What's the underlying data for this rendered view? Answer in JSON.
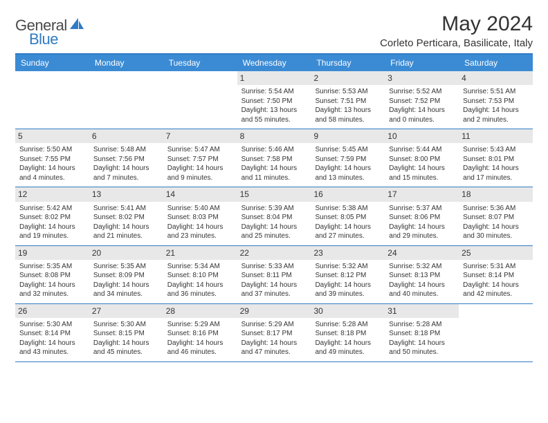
{
  "brand": {
    "part1": "General",
    "part2": "Blue"
  },
  "title": "May 2024",
  "location": "Corleto Perticara, Basilicate, Italy",
  "colors": {
    "header_bg": "#3b8bd4",
    "border": "#2f7bc4",
    "daynum_bg": "#e8e8e8",
    "text": "#333333",
    "white": "#ffffff"
  },
  "calendar": {
    "weekdays": [
      "Sunday",
      "Monday",
      "Tuesday",
      "Wednesday",
      "Thursday",
      "Friday",
      "Saturday"
    ],
    "layout": {
      "fontsize_day_number": 12,
      "fontsize_body": 10,
      "fontsize_weekday": 12,
      "cell_min_height": 82
    },
    "weeks": [
      [
        {
          "empty": true
        },
        {
          "empty": true
        },
        {
          "empty": true
        },
        {
          "day": "1",
          "sunrise": "Sunrise: 5:54 AM",
          "sunset": "Sunset: 7:50 PM",
          "daylight1": "Daylight: 13 hours",
          "daylight2": "and 55 minutes."
        },
        {
          "day": "2",
          "sunrise": "Sunrise: 5:53 AM",
          "sunset": "Sunset: 7:51 PM",
          "daylight1": "Daylight: 13 hours",
          "daylight2": "and 58 minutes."
        },
        {
          "day": "3",
          "sunrise": "Sunrise: 5:52 AM",
          "sunset": "Sunset: 7:52 PM",
          "daylight1": "Daylight: 14 hours",
          "daylight2": "and 0 minutes."
        },
        {
          "day": "4",
          "sunrise": "Sunrise: 5:51 AM",
          "sunset": "Sunset: 7:53 PM",
          "daylight1": "Daylight: 14 hours",
          "daylight2": "and 2 minutes."
        }
      ],
      [
        {
          "day": "5",
          "sunrise": "Sunrise: 5:50 AM",
          "sunset": "Sunset: 7:55 PM",
          "daylight1": "Daylight: 14 hours",
          "daylight2": "and 4 minutes."
        },
        {
          "day": "6",
          "sunrise": "Sunrise: 5:48 AM",
          "sunset": "Sunset: 7:56 PM",
          "daylight1": "Daylight: 14 hours",
          "daylight2": "and 7 minutes."
        },
        {
          "day": "7",
          "sunrise": "Sunrise: 5:47 AM",
          "sunset": "Sunset: 7:57 PM",
          "daylight1": "Daylight: 14 hours",
          "daylight2": "and 9 minutes."
        },
        {
          "day": "8",
          "sunrise": "Sunrise: 5:46 AM",
          "sunset": "Sunset: 7:58 PM",
          "daylight1": "Daylight: 14 hours",
          "daylight2": "and 11 minutes."
        },
        {
          "day": "9",
          "sunrise": "Sunrise: 5:45 AM",
          "sunset": "Sunset: 7:59 PM",
          "daylight1": "Daylight: 14 hours",
          "daylight2": "and 13 minutes."
        },
        {
          "day": "10",
          "sunrise": "Sunrise: 5:44 AM",
          "sunset": "Sunset: 8:00 PM",
          "daylight1": "Daylight: 14 hours",
          "daylight2": "and 15 minutes."
        },
        {
          "day": "11",
          "sunrise": "Sunrise: 5:43 AM",
          "sunset": "Sunset: 8:01 PM",
          "daylight1": "Daylight: 14 hours",
          "daylight2": "and 17 minutes."
        }
      ],
      [
        {
          "day": "12",
          "sunrise": "Sunrise: 5:42 AM",
          "sunset": "Sunset: 8:02 PM",
          "daylight1": "Daylight: 14 hours",
          "daylight2": "and 19 minutes."
        },
        {
          "day": "13",
          "sunrise": "Sunrise: 5:41 AM",
          "sunset": "Sunset: 8:02 PM",
          "daylight1": "Daylight: 14 hours",
          "daylight2": "and 21 minutes."
        },
        {
          "day": "14",
          "sunrise": "Sunrise: 5:40 AM",
          "sunset": "Sunset: 8:03 PM",
          "daylight1": "Daylight: 14 hours",
          "daylight2": "and 23 minutes."
        },
        {
          "day": "15",
          "sunrise": "Sunrise: 5:39 AM",
          "sunset": "Sunset: 8:04 PM",
          "daylight1": "Daylight: 14 hours",
          "daylight2": "and 25 minutes."
        },
        {
          "day": "16",
          "sunrise": "Sunrise: 5:38 AM",
          "sunset": "Sunset: 8:05 PM",
          "daylight1": "Daylight: 14 hours",
          "daylight2": "and 27 minutes."
        },
        {
          "day": "17",
          "sunrise": "Sunrise: 5:37 AM",
          "sunset": "Sunset: 8:06 PM",
          "daylight1": "Daylight: 14 hours",
          "daylight2": "and 29 minutes."
        },
        {
          "day": "18",
          "sunrise": "Sunrise: 5:36 AM",
          "sunset": "Sunset: 8:07 PM",
          "daylight1": "Daylight: 14 hours",
          "daylight2": "and 30 minutes."
        }
      ],
      [
        {
          "day": "19",
          "sunrise": "Sunrise: 5:35 AM",
          "sunset": "Sunset: 8:08 PM",
          "daylight1": "Daylight: 14 hours",
          "daylight2": "and 32 minutes."
        },
        {
          "day": "20",
          "sunrise": "Sunrise: 5:35 AM",
          "sunset": "Sunset: 8:09 PM",
          "daylight1": "Daylight: 14 hours",
          "daylight2": "and 34 minutes."
        },
        {
          "day": "21",
          "sunrise": "Sunrise: 5:34 AM",
          "sunset": "Sunset: 8:10 PM",
          "daylight1": "Daylight: 14 hours",
          "daylight2": "and 36 minutes."
        },
        {
          "day": "22",
          "sunrise": "Sunrise: 5:33 AM",
          "sunset": "Sunset: 8:11 PM",
          "daylight1": "Daylight: 14 hours",
          "daylight2": "and 37 minutes."
        },
        {
          "day": "23",
          "sunrise": "Sunrise: 5:32 AM",
          "sunset": "Sunset: 8:12 PM",
          "daylight1": "Daylight: 14 hours",
          "daylight2": "and 39 minutes."
        },
        {
          "day": "24",
          "sunrise": "Sunrise: 5:32 AM",
          "sunset": "Sunset: 8:13 PM",
          "daylight1": "Daylight: 14 hours",
          "daylight2": "and 40 minutes."
        },
        {
          "day": "25",
          "sunrise": "Sunrise: 5:31 AM",
          "sunset": "Sunset: 8:14 PM",
          "daylight1": "Daylight: 14 hours",
          "daylight2": "and 42 minutes."
        }
      ],
      [
        {
          "day": "26",
          "sunrise": "Sunrise: 5:30 AM",
          "sunset": "Sunset: 8:14 PM",
          "daylight1": "Daylight: 14 hours",
          "daylight2": "and 43 minutes."
        },
        {
          "day": "27",
          "sunrise": "Sunrise: 5:30 AM",
          "sunset": "Sunset: 8:15 PM",
          "daylight1": "Daylight: 14 hours",
          "daylight2": "and 45 minutes."
        },
        {
          "day": "28",
          "sunrise": "Sunrise: 5:29 AM",
          "sunset": "Sunset: 8:16 PM",
          "daylight1": "Daylight: 14 hours",
          "daylight2": "and 46 minutes."
        },
        {
          "day": "29",
          "sunrise": "Sunrise: 5:29 AM",
          "sunset": "Sunset: 8:17 PM",
          "daylight1": "Daylight: 14 hours",
          "daylight2": "and 47 minutes."
        },
        {
          "day": "30",
          "sunrise": "Sunrise: 5:28 AM",
          "sunset": "Sunset: 8:18 PM",
          "daylight1": "Daylight: 14 hours",
          "daylight2": "and 49 minutes."
        },
        {
          "day": "31",
          "sunrise": "Sunrise: 5:28 AM",
          "sunset": "Sunset: 8:18 PM",
          "daylight1": "Daylight: 14 hours",
          "daylight2": "and 50 minutes."
        },
        {
          "empty": true
        }
      ]
    ]
  }
}
